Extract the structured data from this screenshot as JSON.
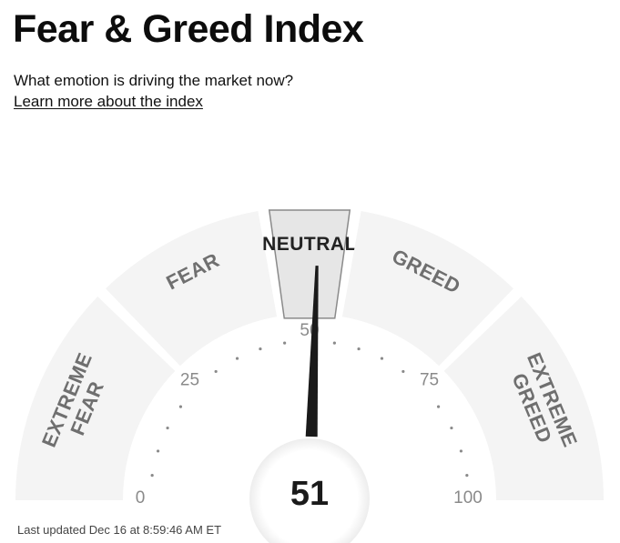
{
  "header": {
    "title": "Fear & Greed Index",
    "subtitle": "What emotion is driving the market now?",
    "learn_more_link": "Learn more about the index"
  },
  "gauge": {
    "value": 51,
    "min": 0,
    "max": 100,
    "active_segment": "NEUTRAL",
    "segments": [
      {
        "lines": [
          "EXTREME",
          "FEAR"
        ],
        "range": [
          0,
          25
        ]
      },
      {
        "lines": [
          "FEAR"
        ],
        "range": [
          25,
          45
        ]
      },
      {
        "lines": [
          "NEUTRAL"
        ],
        "range": [
          45,
          55
        ]
      },
      {
        "lines": [
          "GREED"
        ],
        "range": [
          55,
          75
        ]
      },
      {
        "lines": [
          "EXTREME",
          "GREED"
        ],
        "range": [
          75,
          100
        ]
      }
    ],
    "tick_labels": [
      "0",
      "25",
      "50",
      "75",
      "100"
    ],
    "colors": {
      "segment": "#f4f4f4",
      "active_segment": "#e6e6e6",
      "active_border": "#8a8a8a",
      "label": "#6f6f6f",
      "active_label": "#222222",
      "needle": "#1a1a1a",
      "tick_dots": "#8a8a8a"
    }
  },
  "footer": {
    "last_updated": "Last updated Dec 16 at 8:59:46 AM ET"
  }
}
